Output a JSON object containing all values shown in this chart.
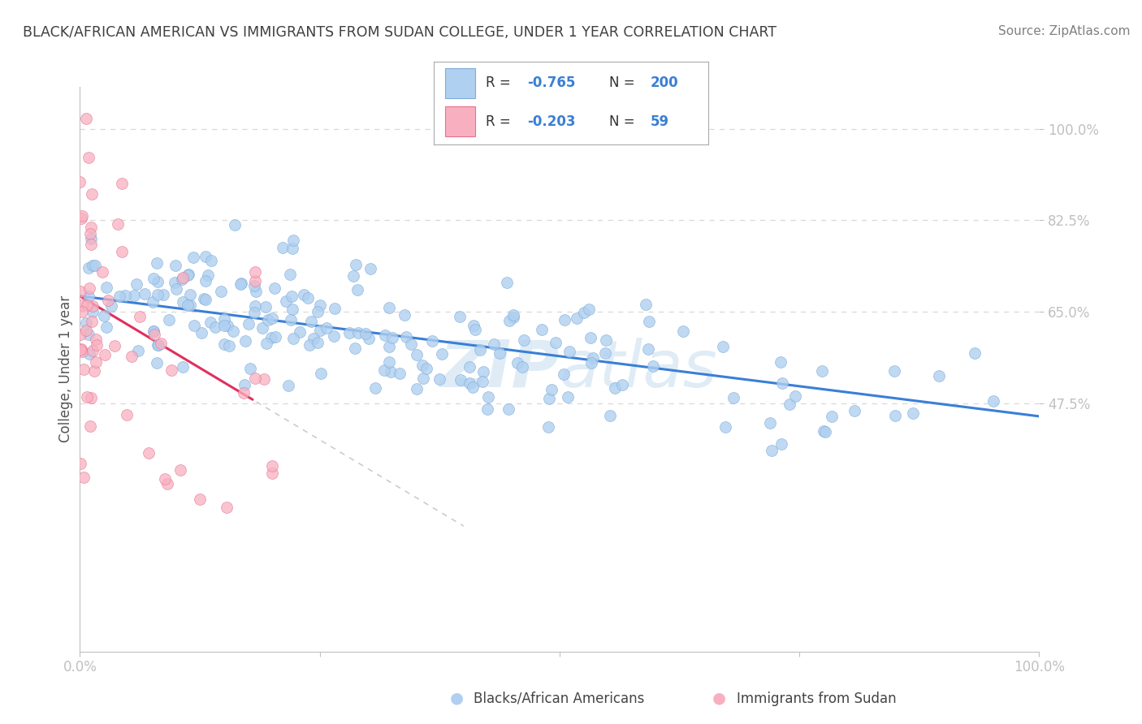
{
  "title": "BLACK/AFRICAN AMERICAN VS IMMIGRANTS FROM SUDAN COLLEGE, UNDER 1 YEAR CORRELATION CHART",
  "source": "Source: ZipAtlas.com",
  "ylabel": "College, Under 1 year",
  "watermark": "ZIPatlas",
  "blue_R": -0.765,
  "blue_N": 200,
  "pink_R": -0.203,
  "pink_N": 59,
  "blue_color": "#afd0f0",
  "blue_edge": "#80acd8",
  "pink_color": "#f8b0c0",
  "pink_edge": "#e87090",
  "blue_line_color": "#3a7fd5",
  "pink_line_color": "#e03060",
  "legend_blue_fill": "#afd0f0",
  "legend_pink_fill": "#f8b0c0",
  "title_color": "#404040",
  "source_color": "#808080",
  "tick_color": "#4a90d9",
  "axis_color": "#c0c0c0",
  "grid_color": "#d8d8d8",
  "xmin": 0.0,
  "xmax": 1.0,
  "ymin": 0.0,
  "ymax": 1.0,
  "y_tick_labels": [
    "100.0%",
    "82.5%",
    "65.0%",
    "47.5%"
  ],
  "y_tick_positions": [
    1.0,
    0.825,
    0.65,
    0.475
  ],
  "blue_intercept": 0.68,
  "blue_slope": -0.23,
  "pink_intercept": 0.68,
  "pink_slope": -1.1,
  "n_blue": 200,
  "n_pink": 59
}
